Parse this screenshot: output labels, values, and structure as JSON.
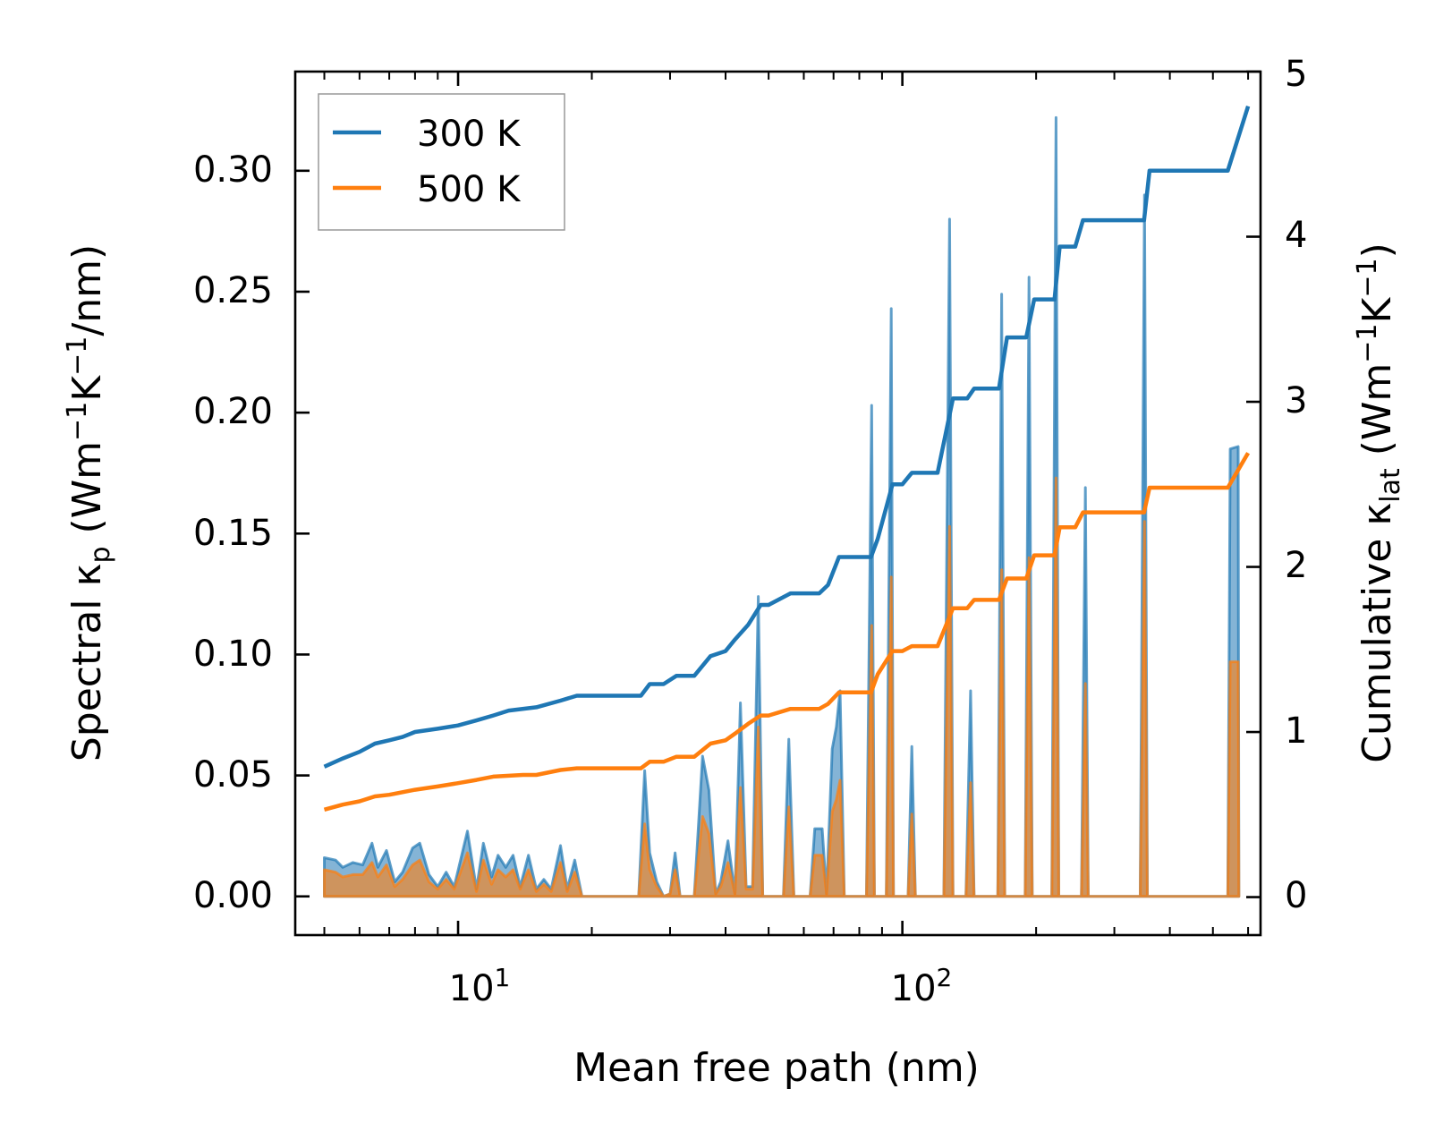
{
  "chart_data": {
    "type": "line",
    "xscale": "log",
    "xlim": [
      4.3,
      640
    ],
    "xlabel": "Mean free path (nm)",
    "x_tick_labels": [
      {
        "base": "10",
        "exp": "1",
        "value": 10
      },
      {
        "base": "10",
        "exp": "2",
        "value": 100
      }
    ],
    "left_axis": {
      "label_pre": "Spectral κ",
      "label_sub": "p",
      "label_unit": "(Wm",
      "label_sup1": "−1",
      "label_mid": "K",
      "label_sup2": "−1",
      "label_post": "/nm)",
      "ylim": [
        -0.016,
        0.341
      ],
      "ticks": [
        0.0,
        0.05,
        0.1,
        0.15,
        0.2,
        0.25,
        0.3
      ],
      "tick_labels": [
        "0.00",
        "0.05",
        "0.10",
        "0.15",
        "0.20",
        "0.25",
        "0.30"
      ]
    },
    "right_axis": {
      "label_pre": "Cumulative κ",
      "label_sub": "lat",
      "label_unit": "(Wm",
      "label_sup1": "−1",
      "label_mid": "K",
      "label_sup2": "−1",
      "label_post": ")",
      "ylim": [
        -0.23,
        5.0
      ],
      "ticks": [
        0,
        1,
        2,
        3,
        4,
        5
      ],
      "tick_labels": [
        "0",
        "1",
        "2",
        "3",
        "4",
        "5"
      ]
    },
    "legend": {
      "position": "top-left",
      "entries": [
        {
          "name": "300 K",
          "color": "#1f77b4"
        },
        {
          "name": "500 K",
          "color": "#ff7f0e"
        }
      ]
    },
    "cumulative_series": [
      {
        "name": "300 K",
        "color": "#1f77b4",
        "points": [
          [
            5,
            0.79
          ],
          [
            5.5,
            0.84
          ],
          [
            6,
            0.88
          ],
          [
            6.5,
            0.93
          ],
          [
            7,
            0.95
          ],
          [
            7.5,
            0.97
          ],
          [
            8,
            1.0
          ],
          [
            9,
            1.02
          ],
          [
            10,
            1.04
          ],
          [
            11,
            1.07
          ],
          [
            12,
            1.1
          ],
          [
            13,
            1.13
          ],
          [
            15,
            1.15
          ],
          [
            17,
            1.19
          ],
          [
            18.5,
            1.22
          ],
          [
            20,
            1.22
          ],
          [
            25,
            1.22
          ],
          [
            25.8,
            1.22
          ],
          [
            27,
            1.29
          ],
          [
            29,
            1.29
          ],
          [
            31,
            1.34
          ],
          [
            34,
            1.34
          ],
          [
            37,
            1.46
          ],
          [
            40,
            1.49
          ],
          [
            42,
            1.56
          ],
          [
            45,
            1.65
          ],
          [
            48,
            1.77
          ],
          [
            50,
            1.77
          ],
          [
            56,
            1.84
          ],
          [
            65,
            1.84
          ],
          [
            68,
            1.89
          ],
          [
            72,
            2.06
          ],
          [
            85,
            2.06
          ],
          [
            88,
            2.17
          ],
          [
            95,
            2.5
          ],
          [
            100,
            2.5
          ],
          [
            105,
            2.57
          ],
          [
            120,
            2.57
          ],
          [
            130,
            3.02
          ],
          [
            140,
            3.02
          ],
          [
            145,
            3.08
          ],
          [
            165,
            3.08
          ],
          [
            172,
            3.39
          ],
          [
            190,
            3.39
          ],
          [
            198,
            3.62
          ],
          [
            220,
            3.62
          ],
          [
            226,
            3.94
          ],
          [
            245,
            3.94
          ],
          [
            255,
            4.1
          ],
          [
            350,
            4.1
          ],
          [
            360,
            4.4
          ],
          [
            540,
            4.4
          ],
          [
            600,
            4.79
          ]
        ]
      },
      {
        "name": "500 K",
        "color": "#ff7f0e",
        "points": [
          [
            5,
            0.53
          ],
          [
            5.5,
            0.56
          ],
          [
            6,
            0.58
          ],
          [
            6.5,
            0.61
          ],
          [
            7,
            0.62
          ],
          [
            8,
            0.65
          ],
          [
            9,
            0.67
          ],
          [
            10,
            0.69
          ],
          [
            11,
            0.71
          ],
          [
            12,
            0.73
          ],
          [
            14,
            0.74
          ],
          [
            15,
            0.74
          ],
          [
            17,
            0.77
          ],
          [
            18.5,
            0.78
          ],
          [
            25,
            0.78
          ],
          [
            25.8,
            0.78
          ],
          [
            27,
            0.82
          ],
          [
            29,
            0.82
          ],
          [
            31,
            0.85
          ],
          [
            34,
            0.85
          ],
          [
            37,
            0.93
          ],
          [
            40,
            0.95
          ],
          [
            42,
            0.99
          ],
          [
            45,
            1.05
          ],
          [
            48,
            1.1
          ],
          [
            50,
            1.1
          ],
          [
            56,
            1.14
          ],
          [
            65,
            1.14
          ],
          [
            68,
            1.17
          ],
          [
            72,
            1.24
          ],
          [
            85,
            1.24
          ],
          [
            88,
            1.35
          ],
          [
            95,
            1.49
          ],
          [
            100,
            1.49
          ],
          [
            105,
            1.52
          ],
          [
            120,
            1.52
          ],
          [
            130,
            1.75
          ],
          [
            140,
            1.75
          ],
          [
            145,
            1.8
          ],
          [
            165,
            1.8
          ],
          [
            172,
            1.93
          ],
          [
            190,
            1.93
          ],
          [
            198,
            2.07
          ],
          [
            220,
            2.07
          ],
          [
            226,
            2.24
          ],
          [
            245,
            2.24
          ],
          [
            255,
            2.33
          ],
          [
            350,
            2.33
          ],
          [
            360,
            2.48
          ],
          [
            540,
            2.48
          ],
          [
            600,
            2.69
          ]
        ]
      }
    ],
    "spectral_series": [
      {
        "name": "300 K",
        "color": "#1f77b4",
        "points": [
          [
            5,
            0.016
          ],
          [
            5.3,
            0.015
          ],
          [
            5.5,
            0.012
          ],
          [
            5.8,
            0.014
          ],
          [
            6.1,
            0.013
          ],
          [
            6.4,
            0.022
          ],
          [
            6.6,
            0.012
          ],
          [
            6.9,
            0.019
          ],
          [
            7.2,
            0.006
          ],
          [
            7.5,
            0.01
          ],
          [
            7.9,
            0.02
          ],
          [
            8.2,
            0.022
          ],
          [
            8.6,
            0.009
          ],
          [
            9,
            0.004
          ],
          [
            9.4,
            0.01
          ],
          [
            9.8,
            0.004
          ],
          [
            10.5,
            0.027
          ],
          [
            11,
            0.003
          ],
          [
            11.4,
            0.022
          ],
          [
            11.9,
            0.008
          ],
          [
            12.3,
            0.017
          ],
          [
            12.8,
            0.012
          ],
          [
            13.3,
            0.017
          ],
          [
            13.8,
            0.004
          ],
          [
            14.4,
            0.017
          ],
          [
            15,
            0.003
          ],
          [
            15.6,
            0.007
          ],
          [
            16.2,
            0.003
          ],
          [
            17,
            0.021
          ],
          [
            17.6,
            0.003
          ],
          [
            18.3,
            0.015
          ],
          [
            19,
            0.0
          ],
          [
            25.5,
            0.0
          ],
          [
            26.3,
            0.052
          ],
          [
            27,
            0.018
          ],
          [
            28,
            0.006
          ],
          [
            29,
            0.0
          ],
          [
            30,
            0.001
          ],
          [
            30.8,
            0.018
          ],
          [
            31.6,
            0.0
          ],
          [
            34,
            0.0
          ],
          [
            35.5,
            0.058
          ],
          [
            36.7,
            0.044
          ],
          [
            38,
            0.001
          ],
          [
            39,
            0.006
          ],
          [
            40.5,
            0.023
          ],
          [
            42,
            0.001
          ],
          [
            43.2,
            0.08
          ],
          [
            44.5,
            0.004
          ],
          [
            46,
            0.004
          ],
          [
            47.4,
            0.124
          ],
          [
            48.5,
            0.0
          ],
          [
            54,
            0.0
          ],
          [
            55.5,
            0.065
          ],
          [
            57,
            0.0
          ],
          [
            62,
            0.0
          ],
          [
            63.5,
            0.028
          ],
          [
            66,
            0.028
          ],
          [
            67.5,
            0.001
          ],
          [
            69.5,
            0.061
          ],
          [
            71,
            0.07
          ],
          [
            72.4,
            0.085
          ],
          [
            74,
            0.0
          ],
          [
            83,
            0.0
          ],
          [
            85.3,
            0.203
          ],
          [
            86.5,
            0.0
          ],
          [
            92,
            0.0
          ],
          [
            94.4,
            0.243
          ],
          [
            95.5,
            0.0
          ],
          [
            103,
            0.0
          ],
          [
            105,
            0.062
          ],
          [
            107,
            0.0
          ],
          [
            124,
            0.0
          ],
          [
            127.7,
            0.28
          ],
          [
            130,
            0.0
          ],
          [
            139,
            0.0
          ],
          [
            142.4,
            0.085
          ],
          [
            145,
            0.0
          ],
          [
            164,
            0.0
          ],
          [
            167.3,
            0.249
          ],
          [
            170,
            0.0
          ],
          [
            189,
            0.0
          ],
          [
            192.8,
            0.256
          ],
          [
            196,
            0.0
          ],
          [
            217,
            0.0
          ],
          [
            221.7,
            0.322
          ],
          [
            225,
            0.0
          ],
          [
            253,
            0.0
          ],
          [
            258.2,
            0.169
          ],
          [
            262,
            0.0
          ],
          [
            343,
            0.0
          ],
          [
            350.8,
            0.29
          ],
          [
            356,
            0.0
          ],
          [
            540,
            0.0
          ],
          [
            547,
            0.185
          ],
          [
            570,
            0.186
          ],
          [
            572,
            0.0
          ]
        ]
      },
      {
        "name": "500 K",
        "color": "#ff7f0e",
        "points": [
          [
            5,
            0.011
          ],
          [
            5.3,
            0.01
          ],
          [
            5.5,
            0.008
          ],
          [
            5.8,
            0.009
          ],
          [
            6.1,
            0.009
          ],
          [
            6.4,
            0.014
          ],
          [
            6.6,
            0.008
          ],
          [
            6.9,
            0.013
          ],
          [
            7.2,
            0.004
          ],
          [
            7.5,
            0.007
          ],
          [
            7.9,
            0.013
          ],
          [
            8.2,
            0.015
          ],
          [
            8.6,
            0.006
          ],
          [
            9,
            0.003
          ],
          [
            9.4,
            0.007
          ],
          [
            9.8,
            0.003
          ],
          [
            10.5,
            0.018
          ],
          [
            11,
            0.002
          ],
          [
            11.4,
            0.015
          ],
          [
            11.9,
            0.005
          ],
          [
            12.3,
            0.011
          ],
          [
            12.8,
            0.008
          ],
          [
            13.3,
            0.011
          ],
          [
            13.8,
            0.003
          ],
          [
            14.4,
            0.011
          ],
          [
            15,
            0.002
          ],
          [
            15.6,
            0.005
          ],
          [
            16.2,
            0.002
          ],
          [
            17,
            0.014
          ],
          [
            17.6,
            0.002
          ],
          [
            18.3,
            0.01
          ],
          [
            19,
            0.0
          ],
          [
            25.5,
            0.0
          ],
          [
            26.3,
            0.03
          ],
          [
            27,
            0.011
          ],
          [
            28,
            0.004
          ],
          [
            29,
            0.0
          ],
          [
            30,
            0.001
          ],
          [
            30.8,
            0.011
          ],
          [
            31.6,
            0.0
          ],
          [
            34,
            0.0
          ],
          [
            35.5,
            0.033
          ],
          [
            36.7,
            0.026
          ],
          [
            38,
            0.001
          ],
          [
            39,
            0.004
          ],
          [
            40.5,
            0.014
          ],
          [
            42,
            0.001
          ],
          [
            43.2,
            0.045
          ],
          [
            44.5,
            0.003
          ],
          [
            46,
            0.003
          ],
          [
            47.4,
            0.07
          ],
          [
            48.5,
            0.0
          ],
          [
            54,
            0.0
          ],
          [
            55.5,
            0.037
          ],
          [
            57,
            0.0
          ],
          [
            62,
            0.0
          ],
          [
            63.5,
            0.017
          ],
          [
            66,
            0.017
          ],
          [
            67.5,
            0.001
          ],
          [
            69.5,
            0.035
          ],
          [
            71,
            0.04
          ],
          [
            72.4,
            0.048
          ],
          [
            74,
            0.0
          ],
          [
            83,
            0.0
          ],
          [
            85.3,
            0.112
          ],
          [
            86.5,
            0.0
          ],
          [
            92,
            0.0
          ],
          [
            94.4,
            0.132
          ],
          [
            95.5,
            0.0
          ],
          [
            103,
            0.0
          ],
          [
            105,
            0.034
          ],
          [
            107,
            0.0
          ],
          [
            124,
            0.0
          ],
          [
            127.7,
            0.153
          ],
          [
            130,
            0.0
          ],
          [
            139,
            0.0
          ],
          [
            142.4,
            0.047
          ],
          [
            145,
            0.0
          ],
          [
            164,
            0.0
          ],
          [
            167.3,
            0.135
          ],
          [
            170,
            0.0
          ],
          [
            189,
            0.0
          ],
          [
            192.8,
            0.14
          ],
          [
            196,
            0.0
          ],
          [
            217,
            0.0
          ],
          [
            221.7,
            0.173
          ],
          [
            225,
            0.0
          ],
          [
            253,
            0.0
          ],
          [
            258.2,
            0.088
          ],
          [
            262,
            0.0
          ],
          [
            343,
            0.0
          ],
          [
            350.8,
            0.155
          ],
          [
            356,
            0.0
          ],
          [
            540,
            0.0
          ],
          [
            547,
            0.097
          ],
          [
            570,
            0.097
          ],
          [
            572,
            0.0
          ]
        ]
      }
    ]
  }
}
